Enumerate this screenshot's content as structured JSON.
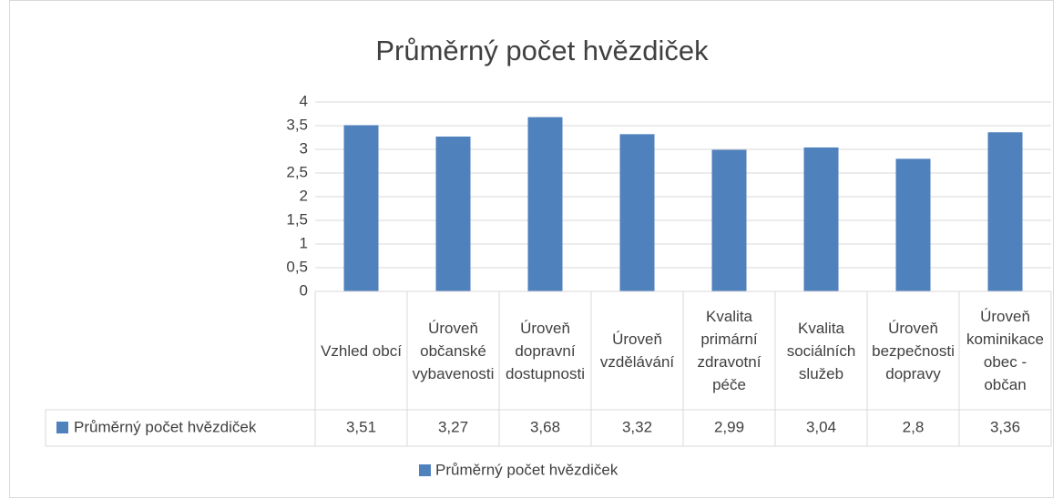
{
  "chart_data": {
    "type": "bar",
    "title": "Průměrný počet hvězdiček",
    "categories": [
      "Vzhled obcí",
      "Úroveň občanské vybavenosti",
      "Úroveň dopravní dostupnosti",
      "Úroveň vzdělávání",
      "Kvalita primární zdravotní péče",
      "Kvalita sociálních služeb",
      "Úroveň bezpečnosti dopravy",
      "Úroveň kominikace obec - občan"
    ],
    "series": [
      {
        "name": "Průměrný počet hvězdiček",
        "color": "#4f81bd",
        "values": [
          3.51,
          3.27,
          3.68,
          3.32,
          2.99,
          3.04,
          2.8,
          3.36
        ],
        "value_labels": [
          "3,51",
          "3,27",
          "3,68",
          "3,32",
          "2,99",
          "3,04",
          "2,8",
          "3,36"
        ]
      }
    ],
    "ylim": [
      0,
      4
    ],
    "yticks": [
      0,
      {
        "value": 0.5,
        "label": "0,5"
      },
      1,
      {
        "value": 1.5,
        "label": "1,5"
      },
      2,
      {
        "value": 2.5,
        "label": "2,5"
      },
      3,
      {
        "value": 3.5,
        "label": "3,5"
      },
      4
    ],
    "grid": true,
    "legend": "bottom"
  }
}
